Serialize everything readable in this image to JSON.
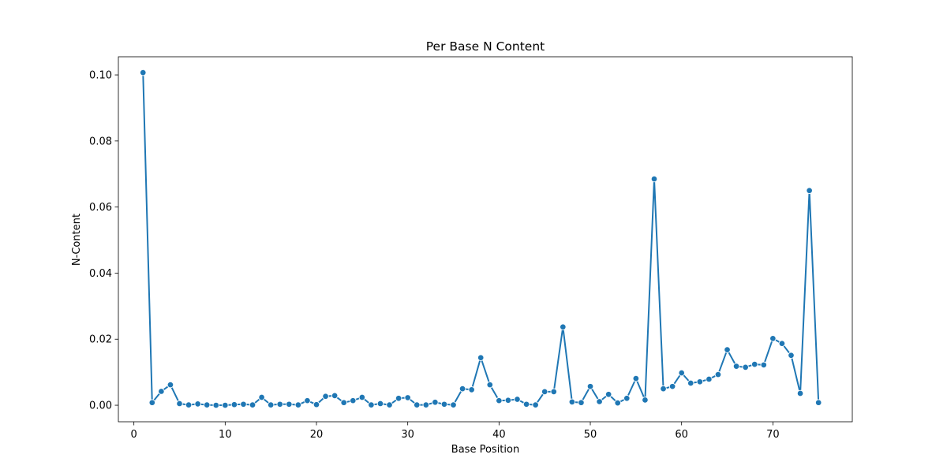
{
  "chart_data": {
    "type": "line",
    "title": "Per Base N Content",
    "xlabel": "Base Position",
    "ylabel": "N-Content",
    "xlim": [
      -1.7,
      78.7
    ],
    "ylim": [
      -0.005,
      0.1055
    ],
    "xticks": [
      0,
      10,
      20,
      30,
      40,
      50,
      60,
      70
    ],
    "yticks": [
      0.0,
      0.02,
      0.04,
      0.06,
      0.08,
      0.1
    ],
    "ytick_labels": [
      "0.00",
      "0.02",
      "0.04",
      "0.06",
      "0.08",
      "0.10"
    ],
    "xtick_labels": [
      "0",
      "10",
      "20",
      "30",
      "40",
      "50",
      "60",
      "70"
    ],
    "grid": false,
    "marker": "circle",
    "color": "#1f77b4",
    "series": [
      {
        "x": [
          1,
          2,
          3,
          4,
          5,
          6,
          7,
          8,
          9,
          10,
          11,
          12,
          13,
          14,
          15,
          16,
          17,
          18,
          19,
          20,
          21,
          22,
          23,
          24,
          25,
          26,
          27,
          28,
          29,
          30,
          31,
          32,
          33,
          34,
          35,
          36,
          37,
          38,
          39,
          40,
          41,
          42,
          43,
          44,
          45,
          46,
          47,
          48,
          49,
          50,
          51,
          52,
          53,
          54,
          55,
          56,
          57,
          58,
          59,
          60,
          61,
          62,
          63,
          64,
          65,
          66,
          67,
          68,
          69,
          70,
          71,
          72,
          73,
          74,
          75
        ],
        "y": [
          0.1007,
          0.0008,
          0.0042,
          0.0062,
          0.0005,
          0.0001,
          0.0004,
          0.0001,
          0.0,
          0.0,
          0.0002,
          0.0003,
          0.0001,
          0.0024,
          0.0001,
          0.0003,
          0.0003,
          0.0001,
          0.0014,
          0.0002,
          0.0027,
          0.0029,
          0.0008,
          0.0014,
          0.0024,
          0.0001,
          0.0005,
          0.0001,
          0.0021,
          0.0023,
          0.0001,
          0.0001,
          0.0009,
          0.0003,
          0.0001,
          0.005,
          0.0047,
          0.0144,
          0.0062,
          0.0014,
          0.0015,
          0.0018,
          0.0003,
          0.0001,
          0.0041,
          0.0041,
          0.0237,
          0.001,
          0.0008,
          0.0057,
          0.0011,
          0.0033,
          0.0007,
          0.0021,
          0.0081,
          0.0016,
          0.0685,
          0.005,
          0.0057,
          0.0098,
          0.0067,
          0.0071,
          0.0079,
          0.0093,
          0.0168,
          0.0118,
          0.0115,
          0.0124,
          0.0122,
          0.0202,
          0.0187,
          0.0151,
          0.0036,
          0.065,
          0.0008
        ]
      }
    ]
  }
}
